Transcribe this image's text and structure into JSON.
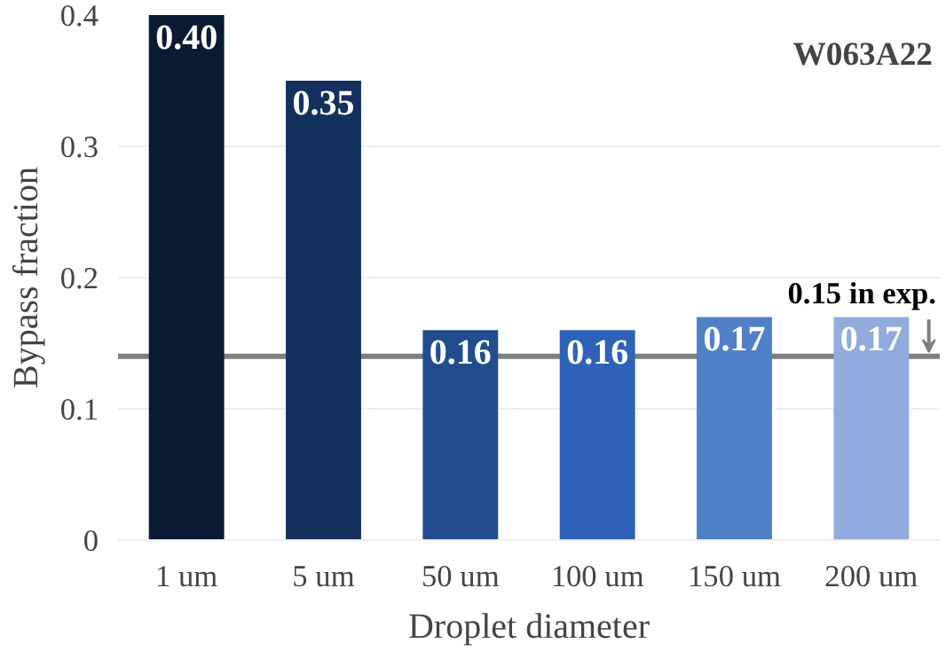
{
  "chart_data": {
    "type": "bar",
    "title": "W063A22",
    "xlabel": "Droplet diameter",
    "ylabel": "Bypass fraction",
    "categories": [
      "1 um",
      "5 um",
      "50 um",
      "100 um",
      "150 um",
      "200 um"
    ],
    "values": [
      0.4,
      0.35,
      0.16,
      0.16,
      0.17,
      0.17
    ],
    "colors": [
      "#0a1a33",
      "#14305f",
      "#214d8f",
      "#2e62b8",
      "#5080c8",
      "#91acdc"
    ],
    "value_labels": [
      "0.40",
      "0.35",
      "0.16",
      "0.16",
      "0.17",
      "0.17"
    ],
    "ylim": [
      0,
      0.4
    ],
    "yticks": [
      0,
      0.1,
      0.2,
      0.3,
      0.4
    ],
    "grid": "y",
    "ref_lines": [
      {
        "axis": "y",
        "value": 0.14,
        "label": "0.15 in exp.",
        "color": "#7f7f7f"
      }
    ]
  }
}
